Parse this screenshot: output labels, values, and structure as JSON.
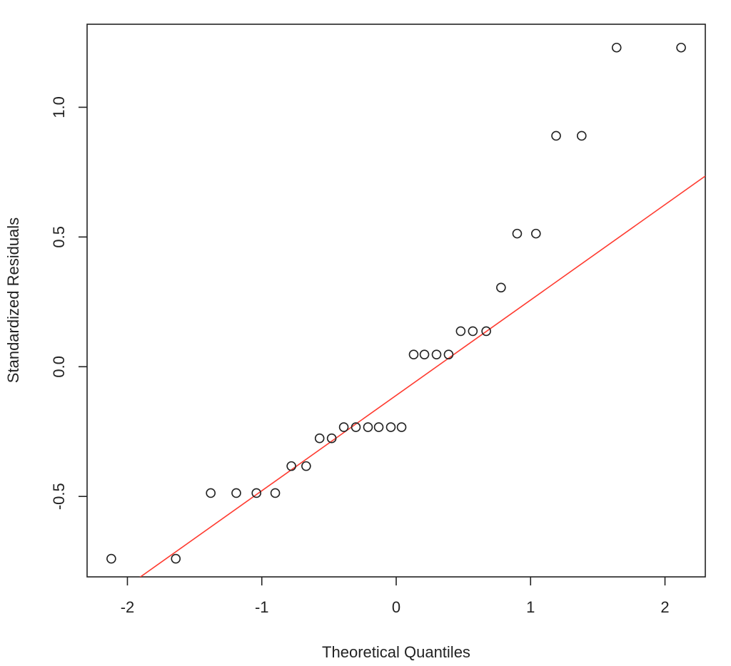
{
  "chart_data": {
    "type": "scatter",
    "title": "",
    "xlabel": "Theoretical Quantiles",
    "ylabel": "Standardized Residuals",
    "xlim": [
      -2.3,
      2.3
    ],
    "ylim": [
      -0.81,
      1.32
    ],
    "x_ticks": [
      {
        "value": -2,
        "label": "-2"
      },
      {
        "value": -1,
        "label": "-1"
      },
      {
        "value": 0,
        "label": "0"
      },
      {
        "value": 1,
        "label": "1"
      },
      {
        "value": 2,
        "label": "2"
      }
    ],
    "y_ticks": [
      {
        "value": -0.5,
        "label": "-0.5"
      },
      {
        "value": 0.0,
        "label": "0.0"
      },
      {
        "value": 0.5,
        "label": "0.5"
      },
      {
        "value": 1.0,
        "label": "1.0"
      }
    ],
    "grid": false,
    "points_color": "#222222",
    "reference_line": {
      "color": "#ff3b30",
      "x": [
        -1.93,
        2.3
      ],
      "y": [
        -0.82,
        0.735
      ]
    },
    "series": [
      {
        "x": [
          -2.12,
          -1.64,
          -1.38,
          -1.19,
          -1.04,
          -0.9,
          -0.78,
          -0.67,
          -0.57,
          -0.48,
          -0.39,
          -0.3,
          -0.21,
          -0.13,
          -0.04,
          0.04,
          0.13,
          0.21,
          0.3,
          0.39,
          0.48,
          0.57,
          0.67,
          0.78,
          0.9,
          1.04,
          1.19,
          1.38,
          1.64,
          2.12
        ],
        "y": [
          -0.74,
          -0.74,
          -0.487,
          -0.487,
          -0.487,
          -0.487,
          -0.383,
          -0.383,
          -0.276,
          -0.276,
          -0.233,
          -0.233,
          -0.233,
          -0.233,
          -0.233,
          -0.233,
          0.047,
          0.047,
          0.047,
          0.047,
          0.137,
          0.137,
          0.137,
          0.305,
          0.513,
          0.513,
          0.89,
          0.89,
          1.23,
          1.23
        ]
      }
    ]
  }
}
